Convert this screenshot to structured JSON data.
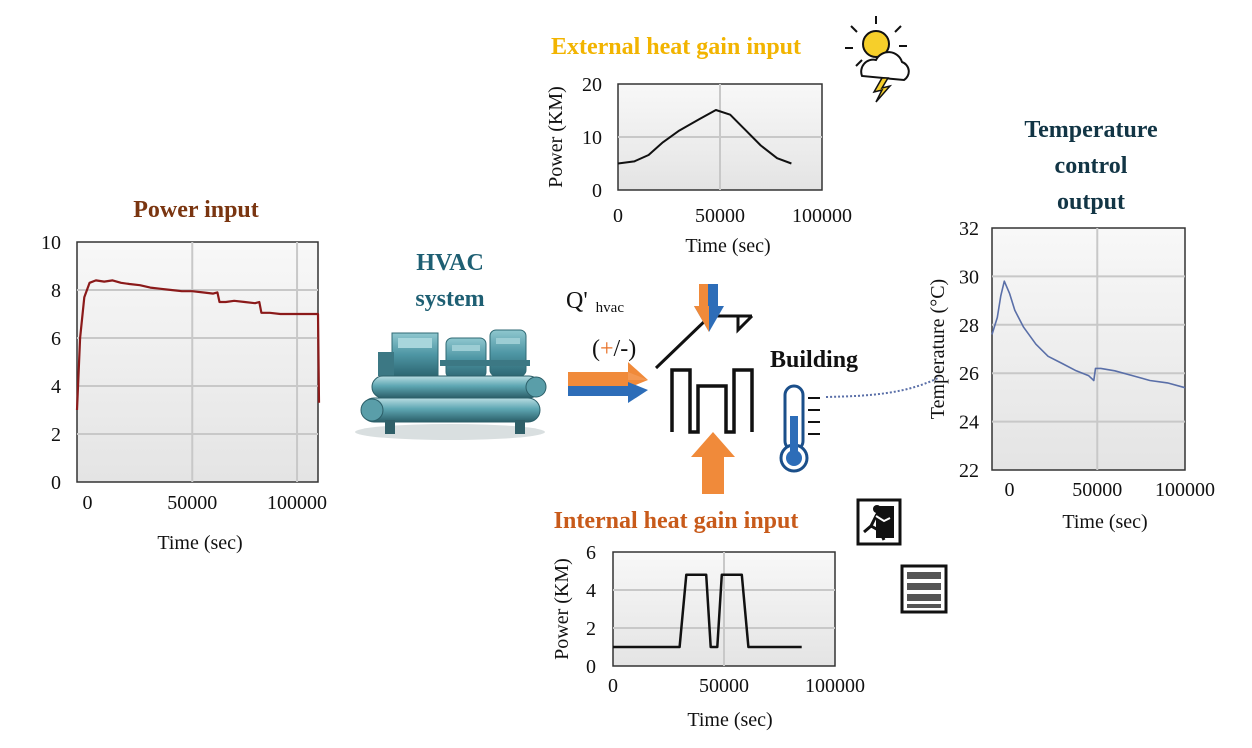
{
  "labels": {
    "power_title": "Power input",
    "hvac_title_line1": "HVAC",
    "hvac_title_line2": "system",
    "external_title": "External heat gain input",
    "internal_title": "Internal heat gain input",
    "temp_title_line1": "Temperature",
    "temp_title_line2": "control",
    "temp_title_line3": "output",
    "building": "Building",
    "q_main": "Q'",
    "q_sub": "hvac",
    "q_sign_open": "(",
    "q_sign_plus": "+",
    "q_sign_rest": "/-)"
  },
  "colors": {
    "power_title": "#7a3510",
    "hvac_title": "#1e5f73",
    "external_title": "#f2b400",
    "internal_title": "#c85a1a",
    "temp_title": "#123545",
    "power_line": "#8b1a1a",
    "temp_line": "#5a6fa8",
    "black_line": "#111111",
    "arrow_orange": "#f08a3a",
    "arrow_blue": "#2d6db8"
  },
  "icons": [
    "sun-cloud-lightning-icon",
    "exit-running-man-icon",
    "server-rack-icon",
    "thermometer-icon",
    "hvac-chiller-image",
    "house-roof-icon",
    "building-outline-icon"
  ],
  "chart_data": [
    {
      "id": "power",
      "type": "line",
      "xlabel": "Time (sec)",
      "ylabel": "",
      "xlim": [
        -5000,
        110000
      ],
      "ylim": [
        0,
        10
      ],
      "xticks": [
        0,
        50000,
        100000
      ],
      "yticks": [
        0,
        2,
        4,
        6,
        8,
        10
      ],
      "grid": true,
      "x": [
        -5000,
        -3500,
        -1500,
        1000,
        4000,
        8000,
        12000,
        16000,
        20000,
        25000,
        30000,
        35000,
        40000,
        45000,
        50000,
        55000,
        60000,
        62000,
        63000,
        66000,
        70000,
        75000,
        80000,
        82000,
        83000,
        87000,
        92000,
        97000,
        102000,
        107000,
        110000,
        110500
      ],
      "y": [
        3.0,
        6.0,
        7.7,
        8.3,
        8.4,
        8.35,
        8.4,
        8.3,
        8.25,
        8.2,
        8.1,
        8.05,
        8.0,
        7.95,
        7.95,
        7.9,
        7.85,
        7.9,
        7.5,
        7.5,
        7.55,
        7.5,
        7.45,
        7.5,
        7.05,
        7.05,
        7.0,
        7.0,
        7.0,
        7.0,
        7.0,
        3.3
      ]
    },
    {
      "id": "external",
      "type": "line",
      "xlabel": "Time (sec)",
      "ylabel": "Power (KM)",
      "xlim": [
        0,
        100000
      ],
      "ylim": [
        0,
        20
      ],
      "xticks": [
        0,
        50000,
        100000
      ],
      "yticks": [
        0,
        10,
        20
      ],
      "grid": true,
      "x": [
        0,
        8000,
        15000,
        22000,
        30000,
        40000,
        48000,
        55000,
        62000,
        70000,
        78000,
        85000
      ],
      "y": [
        5.0,
        5.4,
        6.6,
        9.0,
        11.2,
        13.4,
        15.1,
        14.2,
        11.5,
        8.4,
        6.0,
        5.0
      ]
    },
    {
      "id": "internal",
      "type": "line",
      "xlabel": "Time (sec)",
      "ylabel": "Power (KM)",
      "xlim": [
        0,
        100000
      ],
      "ylim": [
        0,
        6
      ],
      "xticks": [
        0,
        50000,
        100000
      ],
      "yticks": [
        0,
        2,
        4,
        6
      ],
      "grid": true,
      "x": [
        0,
        30000,
        33000,
        42000,
        44000,
        47000,
        49000,
        58000,
        61000,
        85000
      ],
      "y": [
        1,
        1,
        4.8,
        4.8,
        1,
        1,
        4.8,
        4.8,
        1,
        1
      ]
    },
    {
      "id": "temp",
      "type": "line",
      "xlabel": "Time (sec)",
      "ylabel": "Temperature (°C)",
      "xlim": [
        -10000,
        100000
      ],
      "ylim": [
        22,
        32
      ],
      "xticks": [
        0,
        50000,
        100000
      ],
      "yticks": [
        22,
        24,
        26,
        28,
        30,
        32
      ],
      "grid": true,
      "x": [
        -10000,
        -7000,
        -5000,
        -3000,
        0,
        3000,
        8000,
        15000,
        22000,
        30000,
        38000,
        45000,
        48000,
        49000,
        52000,
        60000,
        70000,
        80000,
        90000,
        100000
      ],
      "y": [
        27.6,
        28.3,
        29.2,
        29.8,
        29.3,
        28.6,
        27.9,
        27.2,
        26.7,
        26.4,
        26.1,
        25.9,
        25.7,
        26.2,
        26.2,
        26.1,
        25.9,
        25.7,
        25.6,
        25.4
      ]
    }
  ]
}
